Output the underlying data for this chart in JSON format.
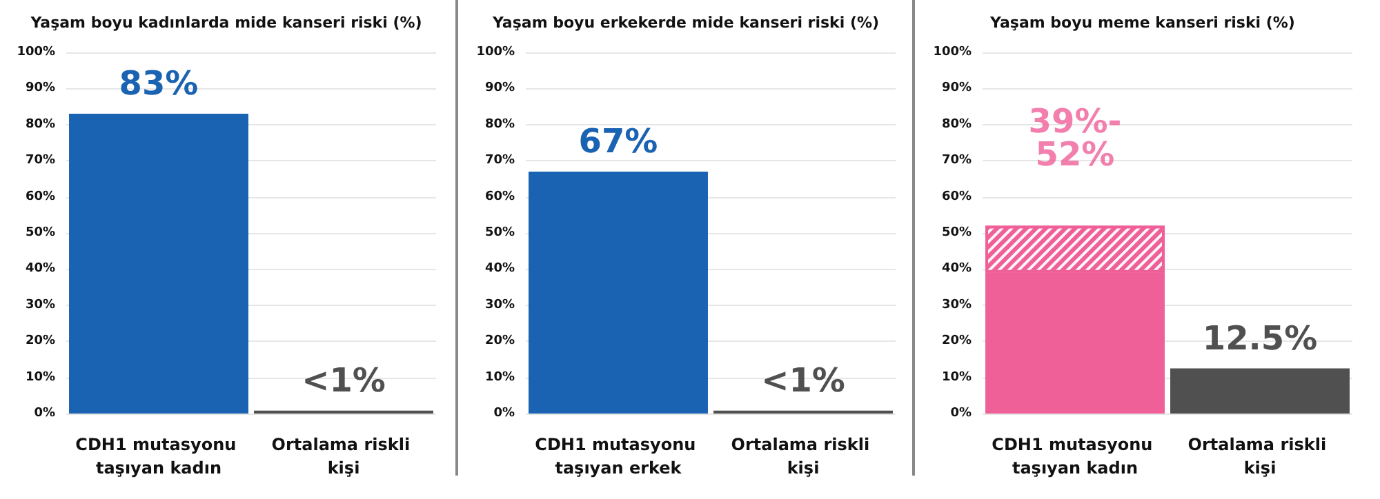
{
  "chart_data": [
    {
      "type": "bar",
      "title": "Yaşam boyu kadınlarda mide kanseri riski (%)",
      "categories": [
        "CDH1 mutasyonu taşıyan kadın",
        "Ortalama riskli kişi"
      ],
      "values": [
        83,
        0.8
      ],
      "colors": [
        "#1a63b2",
        "#505050"
      ],
      "value_labels": [
        "83%",
        "<1%"
      ],
      "ylim": [
        0,
        100
      ],
      "yticks": [
        {
          "value": 0,
          "label": "0%"
        },
        {
          "value": 10,
          "label": "10%"
        },
        {
          "value": 20,
          "label": "20%"
        },
        {
          "value": 30,
          "label": "30%"
        },
        {
          "value": 40,
          "label": "40%"
        },
        {
          "value": 50,
          "label": "50%"
        },
        {
          "value": 60,
          "label": "60%"
        },
        {
          "value": 70,
          "label": "70%"
        },
        {
          "value": 80,
          "label": "80%"
        },
        {
          "value": 90,
          "label": "90%"
        },
        {
          "value": 100,
          "label": "100%"
        }
      ],
      "grid": "y"
    },
    {
      "type": "bar",
      "title": "Yaşam boyu erkekerde mide kanseri riski (%)",
      "categories": [
        "CDH1 mutasyonu taşıyan erkek",
        "Ortalama riskli kişi"
      ],
      "values": [
        67,
        0.8
      ],
      "colors": [
        "#1a63b2",
        "#505050"
      ],
      "value_labels": [
        "67%",
        "<1%"
      ],
      "ylim": [
        0,
        100
      ],
      "yticks": [
        {
          "value": 0,
          "label": "0%"
        },
        {
          "value": 10,
          "label": "10%"
        },
        {
          "value": 20,
          "label": "20%"
        },
        {
          "value": 30,
          "label": "30%"
        },
        {
          "value": 40,
          "label": "40%"
        },
        {
          "value": 50,
          "label": "50%"
        },
        {
          "value": 60,
          "label": "60%"
        },
        {
          "value": 70,
          "label": "70%"
        },
        {
          "value": 80,
          "label": "80%"
        },
        {
          "value": 90,
          "label": "90%"
        },
        {
          "value": 100,
          "label": "100%"
        }
      ],
      "grid": "y"
    },
    {
      "type": "bar",
      "title": "Yaşam boyu meme kanseri riski (%)",
      "categories": [
        "CDH1 mutasyonu taşıyan kadın",
        "Ortalama riskli kişi"
      ],
      "stacked": true,
      "series": [
        {
          "colors": [
            "#ef5f98",
            "#505050"
          ],
          "values": [
            39,
            12.5
          ],
          "value_labels": [
            null,
            "12.5%"
          ]
        },
        {
          "colors": [
            "#ef5f98",
            null
          ],
          "values": [
            13,
            null
          ]
        }
      ],
      "annotations": [
        {
          "text": "39%-52%",
          "x": "CDH1 mutasyonu taşıyan kadın",
          "y": 52
        }
      ],
      "ylim": [
        0,
        100
      ],
      "yticks": [
        {
          "value": 0,
          "label": "0%"
        },
        {
          "value": 10,
          "label": "10%"
        },
        {
          "value": 20,
          "label": "20%"
        },
        {
          "value": 30,
          "label": "30%"
        },
        {
          "value": 40,
          "label": "40%"
        },
        {
          "value": 50,
          "label": "50%"
        },
        {
          "value": 60,
          "label": "60%"
        },
        {
          "value": 70,
          "label": "70%"
        },
        {
          "value": 80,
          "label": "80%"
        },
        {
          "value": 90,
          "label": "90%"
        },
        {
          "value": 100,
          "label": "100%"
        }
      ],
      "grid": "y"
    }
  ]
}
